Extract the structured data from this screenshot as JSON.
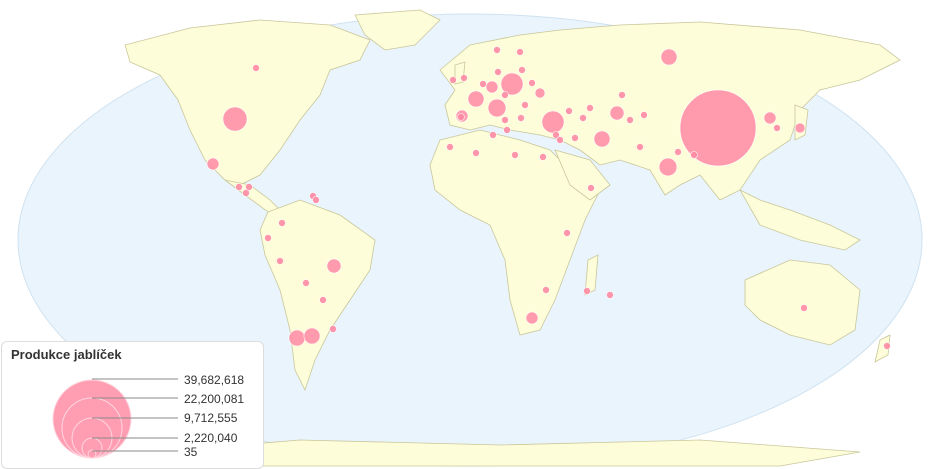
{
  "map": {
    "ocean_color": "#eaf4fc",
    "land_color": "#fdfdd9",
    "border_color": "#c9c79a",
    "bubble_color": "#ff8aa3",
    "bubble_values_estimated": [
      37700000,
      3800000,
      3200000,
      2100000,
      3200000,
      1700000,
      1700000,
      2100000,
      1700000,
      1700000,
      1700000,
      1300000,
      950000,
      950000,
      650000,
      950000,
      1300000,
      650000,
      950000,
      950000
    ]
  },
  "legend": {
    "title": "Produkce jablíček",
    "values": [
      "39,682,618",
      "22,200,081",
      "9,712,555",
      "2,220,040",
      "35"
    ]
  }
}
